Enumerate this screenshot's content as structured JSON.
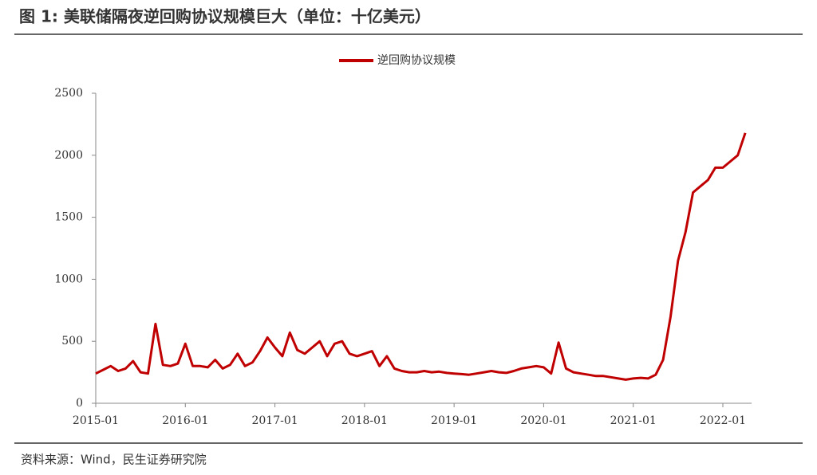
{
  "chart_data": {
    "type": "line",
    "title": "图 1: 美联储隔夜逆回购协议规模巨大（单位：十亿美元）",
    "source": "资料来源：Wind，民生证券研究院",
    "x": [
      "2015-01",
      "2015-02",
      "2015-03",
      "2015-04",
      "2015-05",
      "2015-06",
      "2015-07",
      "2015-08",
      "2015-09",
      "2015-10",
      "2015-11",
      "2015-12",
      "2016-01",
      "2016-02",
      "2016-03",
      "2016-04",
      "2016-05",
      "2016-06",
      "2016-07",
      "2016-08",
      "2016-09",
      "2016-10",
      "2016-11",
      "2016-12",
      "2017-01",
      "2017-02",
      "2017-03",
      "2017-04",
      "2017-05",
      "2017-06",
      "2017-07",
      "2017-08",
      "2017-09",
      "2017-10",
      "2017-11",
      "2017-12",
      "2018-01",
      "2018-02",
      "2018-03",
      "2018-04",
      "2018-05",
      "2018-06",
      "2018-07",
      "2018-08",
      "2018-09",
      "2018-10",
      "2018-11",
      "2018-12",
      "2019-01",
      "2019-02",
      "2019-03",
      "2019-04",
      "2019-05",
      "2019-06",
      "2019-07",
      "2019-08",
      "2019-09",
      "2019-10",
      "2019-11",
      "2019-12",
      "2020-01",
      "2020-02",
      "2020-03",
      "2020-04",
      "2020-05",
      "2020-06",
      "2020-07",
      "2020-08",
      "2020-09",
      "2020-10",
      "2020-11",
      "2020-12",
      "2021-01",
      "2021-02",
      "2021-03",
      "2021-04",
      "2021-05",
      "2021-06",
      "2021-07",
      "2021-08",
      "2021-09",
      "2021-10",
      "2021-11",
      "2021-12",
      "2022-01",
      "2022-02",
      "2022-03",
      "2022-04"
    ],
    "series": [
      {
        "name": "逆回购协议规模",
        "color": "#c00000",
        "values": [
          240,
          270,
          300,
          260,
          280,
          340,
          250,
          240,
          640,
          310,
          300,
          320,
          480,
          300,
          300,
          290,
          350,
          280,
          310,
          400,
          300,
          330,
          420,
          530,
          450,
          380,
          570,
          430,
          400,
          450,
          500,
          380,
          480,
          500,
          400,
          380,
          400,
          420,
          300,
          380,
          280,
          260,
          250,
          250,
          260,
          250,
          255,
          245,
          240,
          235,
          230,
          240,
          250,
          260,
          250,
          245,
          260,
          280,
          290,
          300,
          290,
          240,
          490,
          280,
          250,
          240,
          230,
          220,
          220,
          210,
          200,
          190,
          200,
          205,
          200,
          230,
          350,
          700,
          1150,
          1380,
          1700,
          1750,
          1800,
          1900,
          1900,
          1950,
          2000,
          2180
        ]
      }
    ],
    "ylim": [
      0,
      2500
    ],
    "yticks": [
      0,
      500,
      1000,
      1500,
      2000,
      2500
    ],
    "xticks": [
      "2015-01",
      "2016-01",
      "2017-01",
      "2018-01",
      "2019-01",
      "2020-01",
      "2021-01",
      "2022-01"
    ]
  }
}
